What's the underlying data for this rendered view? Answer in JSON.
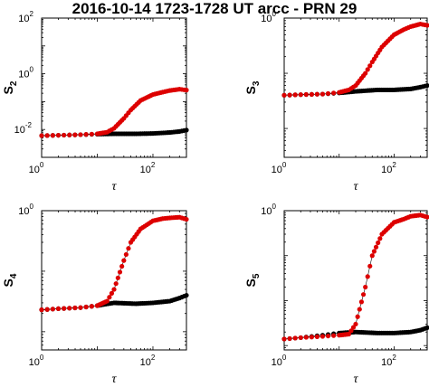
{
  "title": "2016-10-14 1723-1728 UT arcc - PRN 29",
  "colors": {
    "black_series": "#000000",
    "red_series": "#dd0000"
  },
  "chart_data": [
    {
      "type": "scatter",
      "ylabel_main": "S",
      "ylabel_sub": "2",
      "xlabel": "τ",
      "xscale": "log",
      "yscale": "log",
      "xlim": [
        1,
        400
      ],
      "ylim": [
        0.001,
        100
      ],
      "x_ticks": [
        {
          "base": "10",
          "exp": "0",
          "value": 1
        },
        {
          "base": "10",
          "exp": "2",
          "value": 100
        }
      ],
      "y_ticks": [
        {
          "base": "10",
          "exp": "-2",
          "value": 0.01
        },
        {
          "base": "10",
          "exp": "0",
          "value": 1
        },
        {
          "base": "10",
          "exp": "2",
          "value": 100
        }
      ],
      "grid": false,
      "series": [
        {
          "color": "black",
          "x": [
            1,
            2,
            5,
            10,
            20,
            50,
            100,
            200,
            300,
            400
          ],
          "y": [
            0.006,
            0.0062,
            0.0065,
            0.0068,
            0.007,
            0.007,
            0.0072,
            0.0078,
            0.0085,
            0.0095
          ]
        },
        {
          "color": "red",
          "x": [
            1,
            2,
            5,
            10,
            15,
            20,
            30,
            40,
            60,
            100,
            150,
            200,
            300,
            400
          ],
          "y": [
            0.006,
            0.0062,
            0.0065,
            0.007,
            0.008,
            0.011,
            0.025,
            0.05,
            0.11,
            0.18,
            0.22,
            0.25,
            0.28,
            0.26
          ]
        }
      ]
    },
    {
      "type": "scatter",
      "ylabel_main": "S",
      "ylabel_sub": "3",
      "xlabel": "τ",
      "xscale": "log",
      "yscale": "log",
      "xlim": [
        1,
        400
      ],
      "ylim": [
        0.003,
        1
      ],
      "x_ticks": [
        {
          "base": "10",
          "exp": "0",
          "value": 1
        },
        {
          "base": "10",
          "exp": "2",
          "value": 100
        }
      ],
      "y_ticks": [
        {
          "base": "10",
          "exp": "0",
          "value": 1
        }
      ],
      "grid": false,
      "series": [
        {
          "color": "black",
          "x": [
            1,
            2,
            5,
            10,
            20,
            50,
            100,
            200,
            300,
            400
          ],
          "y": [
            0.04,
            0.041,
            0.042,
            0.044,
            0.047,
            0.05,
            0.05,
            0.052,
            0.056,
            0.06
          ]
        },
        {
          "color": "red",
          "x": [
            1,
            2,
            5,
            10,
            15,
            20,
            30,
            40,
            60,
            100,
            150,
            200,
            300,
            400
          ],
          "y": [
            0.04,
            0.041,
            0.042,
            0.045,
            0.05,
            0.06,
            0.1,
            0.16,
            0.3,
            0.5,
            0.62,
            0.7,
            0.78,
            0.74
          ]
        }
      ]
    },
    {
      "type": "scatter",
      "ylabel_main": "S",
      "ylabel_sub": "4",
      "xlabel": "τ",
      "xscale": "log",
      "yscale": "log",
      "xlim": [
        1,
        400
      ],
      "ylim": [
        0.005,
        1
      ],
      "x_ticks": [
        {
          "base": "10",
          "exp": "0",
          "value": 1
        },
        {
          "base": "10",
          "exp": "2",
          "value": 100
        }
      ],
      "y_ticks": [
        {
          "base": "10",
          "exp": "0",
          "value": 1
        }
      ],
      "grid": false,
      "series": [
        {
          "color": "black",
          "x": [
            1,
            2,
            5,
            10,
            20,
            50,
            100,
            200,
            300,
            400
          ],
          "y": [
            0.023,
            0.024,
            0.025,
            0.027,
            0.03,
            0.029,
            0.03,
            0.032,
            0.036,
            0.04
          ]
        },
        {
          "color": "red",
          "x": [
            1,
            2,
            5,
            10,
            15,
            20,
            30,
            40,
            60,
            100,
            150,
            200,
            300,
            400
          ],
          "y": [
            0.023,
            0.024,
            0.025,
            0.027,
            0.032,
            0.05,
            0.15,
            0.3,
            0.5,
            0.68,
            0.74,
            0.76,
            0.78,
            0.72
          ]
        }
      ]
    },
    {
      "type": "scatter",
      "ylabel_main": "S",
      "ylabel_sub": "5",
      "xlabel": "τ",
      "xscale": "log",
      "yscale": "log",
      "xlim": [
        1,
        400
      ],
      "ylim": [
        0.0008,
        1
      ],
      "x_ticks": [
        {
          "base": "10",
          "exp": "0",
          "value": 1
        },
        {
          "base": "10",
          "exp": "2",
          "value": 100
        }
      ],
      "y_ticks": [
        {
          "base": "10",
          "exp": "0",
          "value": 1
        }
      ],
      "grid": false,
      "series": [
        {
          "color": "black",
          "x": [
            1,
            2,
            5,
            10,
            20,
            50,
            100,
            200,
            300,
            400
          ],
          "y": [
            0.0014,
            0.0015,
            0.0017,
            0.0019,
            0.002,
            0.0019,
            0.0019,
            0.002,
            0.0022,
            0.0025
          ]
        },
        {
          "color": "red",
          "x": [
            1,
            2,
            5,
            10,
            15,
            20,
            30,
            40,
            60,
            100,
            150,
            200,
            300,
            400
          ],
          "y": [
            0.0014,
            0.0015,
            0.0016,
            0.0017,
            0.0018,
            0.003,
            0.02,
            0.1,
            0.3,
            0.55,
            0.65,
            0.75,
            0.8,
            0.72
          ]
        }
      ]
    }
  ]
}
